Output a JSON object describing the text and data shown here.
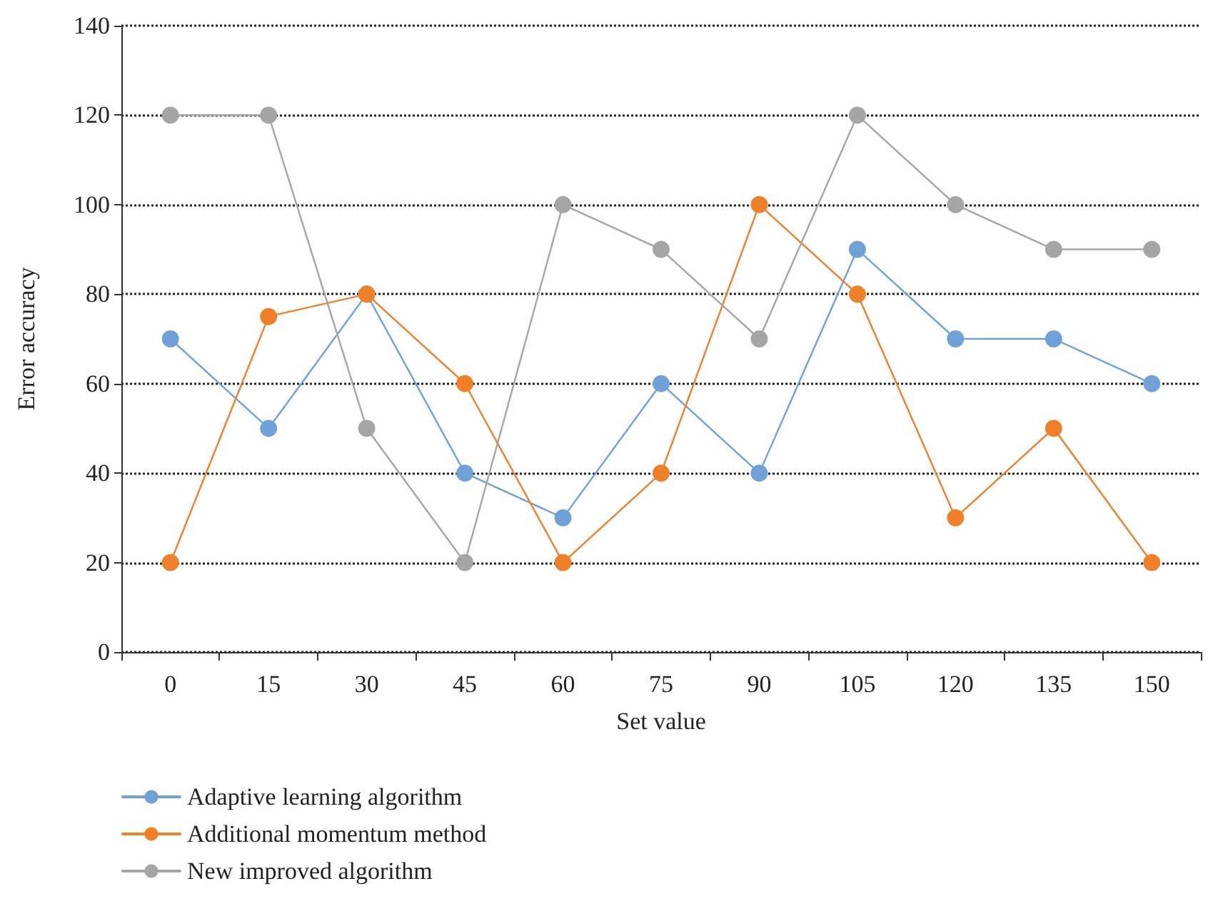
{
  "chart_data": {
    "type": "line",
    "xlabel": "Set value",
    "ylabel": "Error accuracy",
    "categories": [
      "0",
      "15",
      "30",
      "45",
      "60",
      "75",
      "90",
      "105",
      "120",
      "135",
      "150"
    ],
    "series": [
      {
        "name": "Adaptive learning algorithm",
        "color": "#6fa0d8",
        "values": [
          70,
          50,
          80,
          40,
          30,
          60,
          40,
          90,
          70,
          70,
          60
        ]
      },
      {
        "name": "Additional momentum method",
        "color": "#f07f2a",
        "values": [
          20,
          75,
          80,
          60,
          20,
          40,
          100,
          80,
          30,
          50,
          20
        ]
      },
      {
        "name": "New improved algorithm",
        "color": "#a5a5a5",
        "values": [
          120,
          120,
          50,
          20,
          100,
          90,
          70,
          120,
          100,
          90,
          90
        ]
      }
    ],
    "ylim": [
      0,
      140
    ],
    "yticks": [
      0,
      20,
      40,
      60,
      80,
      100,
      120,
      140
    ],
    "grid": "y",
    "legend": "bottom left",
    "marker": "circle",
    "line_style": "solid"
  }
}
